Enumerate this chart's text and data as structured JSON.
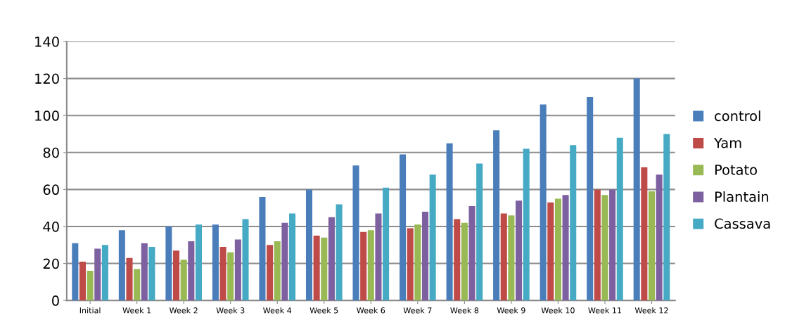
{
  "chart_data": {
    "type": "bar",
    "categories": [
      "Initial",
      "Week 1",
      "Week 2",
      "Week 3",
      "Week 4",
      "Week 5",
      "Week 6",
      "Week 7",
      "Week 8",
      "Week 9",
      "Week 10",
      "Week 11",
      "Week 12"
    ],
    "series": [
      {
        "name": "control",
        "color": "#4a7ebb",
        "values": [
          31,
          38,
          40,
          41,
          56,
          60,
          73,
          79,
          85,
          92,
          106,
          110,
          120
        ]
      },
      {
        "name": "Yam",
        "color": "#be4b48",
        "values": [
          21,
          23,
          27,
          29,
          30,
          35,
          37,
          39,
          44,
          47,
          53,
          60,
          72
        ]
      },
      {
        "name": "Potato",
        "color": "#98b954",
        "values": [
          16,
          17,
          22,
          26,
          32,
          34,
          38,
          41,
          42,
          46,
          55,
          57,
          59
        ]
      },
      {
        "name": "Plantain",
        "color": "#7d60a0",
        "values": [
          28,
          31,
          32,
          33,
          42,
          45,
          47,
          48,
          51,
          54,
          57,
          60,
          68
        ]
      },
      {
        "name": "Cassava",
        "color": "#46aac5",
        "values": [
          30,
          29,
          41,
          44,
          47,
          52,
          61,
          68,
          74,
          82,
          84,
          88,
          90
        ]
      }
    ],
    "ylim": [
      0,
      140
    ],
    "yticks": [
      0,
      20,
      40,
      60,
      80,
      100,
      120,
      140
    ],
    "grid": "y",
    "legend": "right"
  }
}
